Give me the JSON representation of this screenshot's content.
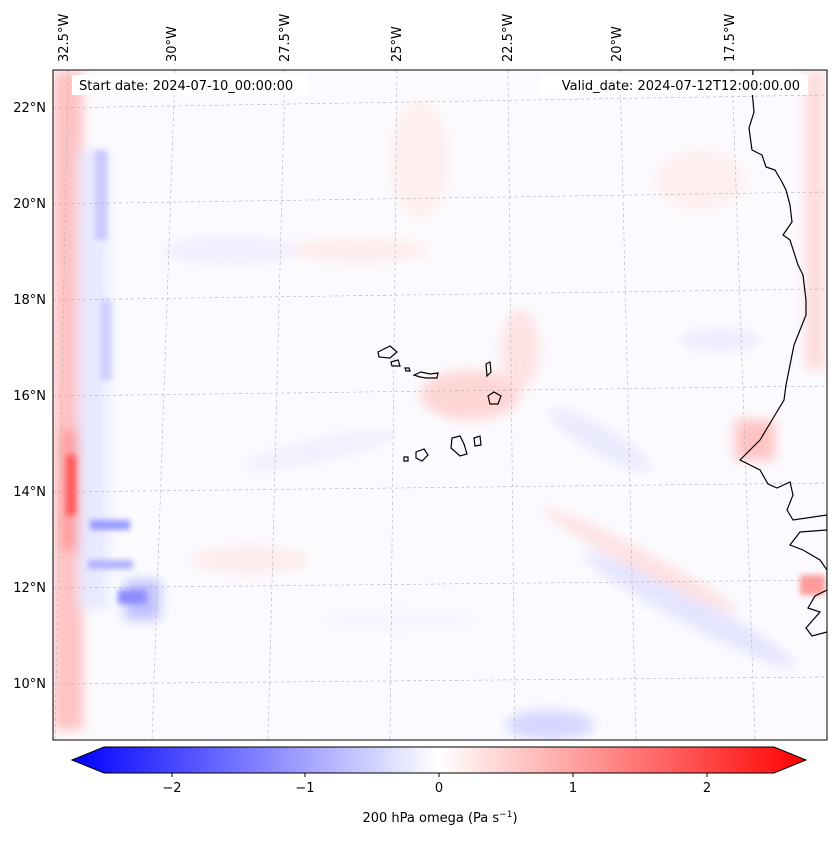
{
  "map": {
    "start_label": "Start date: 2024-07-10_00:00:00",
    "valid_label": "Valid_date: 2024-07-12T12:00:00.00",
    "longitude_labels": [
      "32.5°W",
      "30°W",
      "27.5°W",
      "25°W",
      "22.5°W",
      "20°W",
      "17.5°W"
    ],
    "latitude_labels": [
      "22°N",
      "20°N",
      "18°N",
      "16°N",
      "14°N",
      "12°N",
      "10°N"
    ],
    "extent": {
      "lon_min": -33.0,
      "lon_max": -15.6,
      "lat_min": 8.9,
      "lat_max": 22.7
    },
    "variable": "200 hPa omega",
    "field_description": "mostly near-zero omega with red (positive) and blue (negative) streaks; strong banding along western boundary",
    "coastline": "West African coast (Senegal/Gambia/Guinea-Bissau) and Cape Verde islands"
  },
  "colorbar": {
    "ticks": [
      "−2",
      "−1",
      "0",
      "1",
      "2"
    ],
    "tick_values": [
      -2,
      -1,
      0,
      1,
      2
    ],
    "range": [
      -2.5,
      2.5
    ],
    "extend": "both",
    "label_main": "200 hPa omega (Pa s",
    "label_sup": "−1",
    "label_end": ")",
    "colors": {
      "negative": "#0000ff",
      "zero": "#ffffff",
      "positive": "#ff0000"
    }
  }
}
